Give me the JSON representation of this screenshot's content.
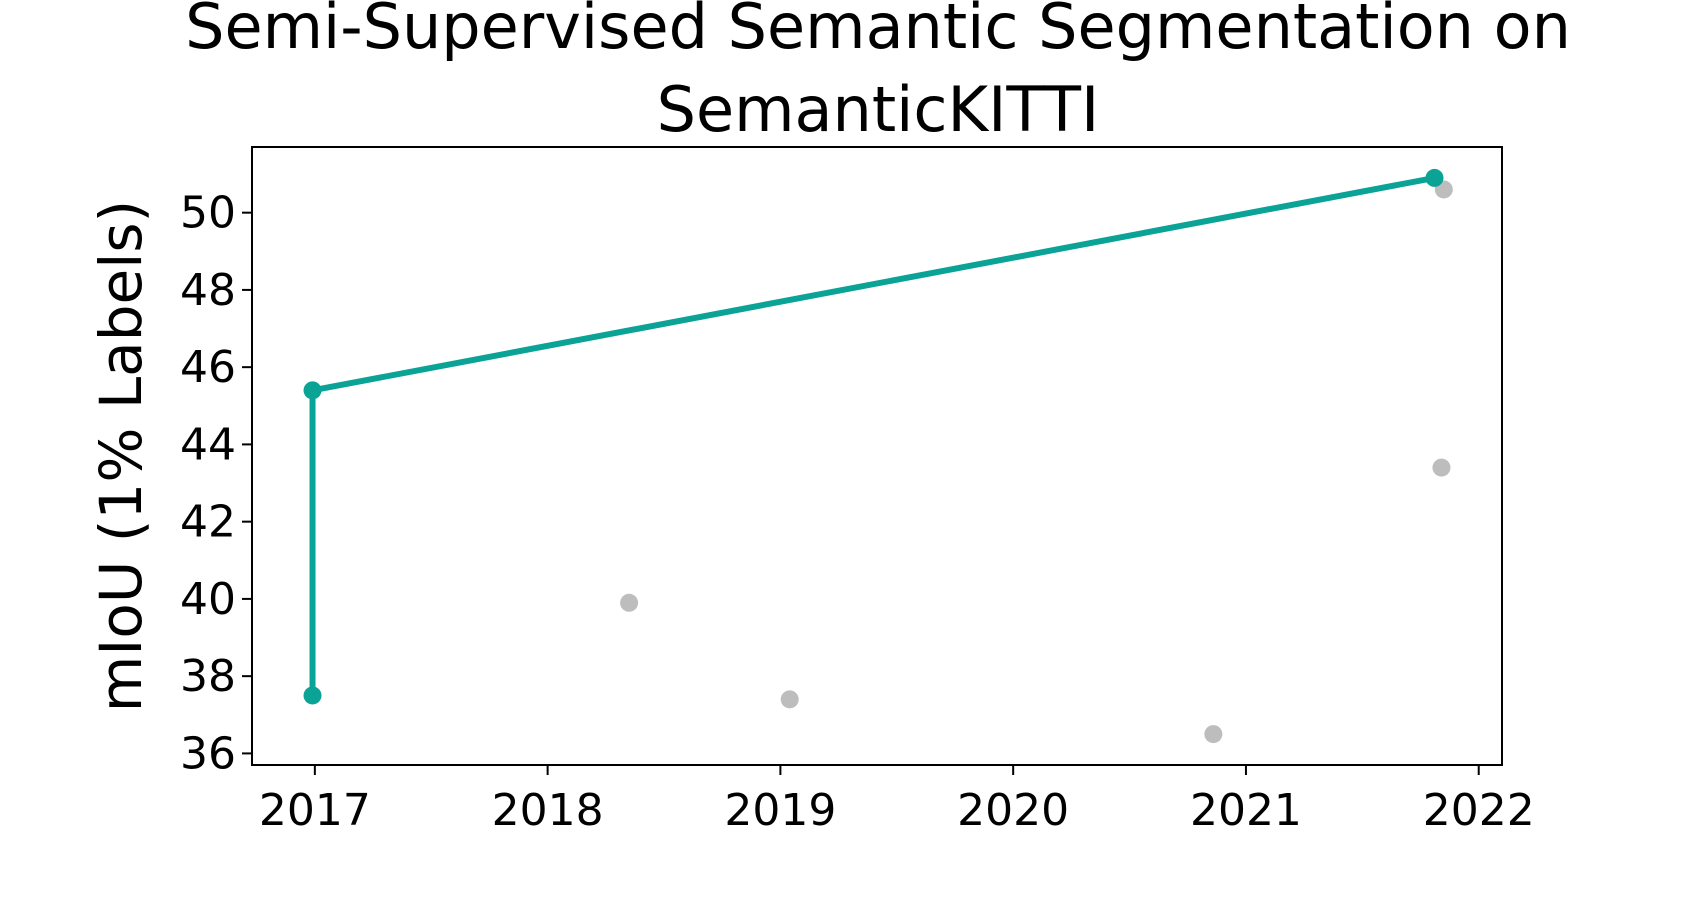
{
  "chart_data": {
    "type": "line",
    "title_lines": [
      "Semi-Supervised Semantic Segmentation on",
      "SemanticKITTI"
    ],
    "xlabel": "",
    "ylabel": "mIoU (1% Labels)",
    "xlim": [
      2016.73,
      2022.1
    ],
    "ylim": [
      35.7,
      51.7
    ],
    "x_ticks": [
      2017,
      2018,
      2019,
      2020,
      2021,
      2022
    ],
    "y_ticks": [
      36,
      38,
      40,
      42,
      44,
      46,
      48,
      50
    ],
    "grid": false,
    "series": [
      {
        "role": "state-of-the-art",
        "color": "#0aa396",
        "points": [
          {
            "x": 2016.99,
            "y": 37.5
          },
          {
            "x": 2016.99,
            "y": 45.4
          },
          {
            "x": 2021.81,
            "y": 50.9
          }
        ]
      },
      {
        "role": "other-methods",
        "color": "#bdbdbd",
        "points": [
          {
            "x": 2018.35,
            "y": 39.9
          },
          {
            "x": 2019.04,
            "y": 37.4
          },
          {
            "x": 2020.86,
            "y": 36.5
          },
          {
            "x": 2021.84,
            "y": 43.4
          },
          {
            "x": 2021.85,
            "y": 50.6
          }
        ]
      }
    ]
  }
}
